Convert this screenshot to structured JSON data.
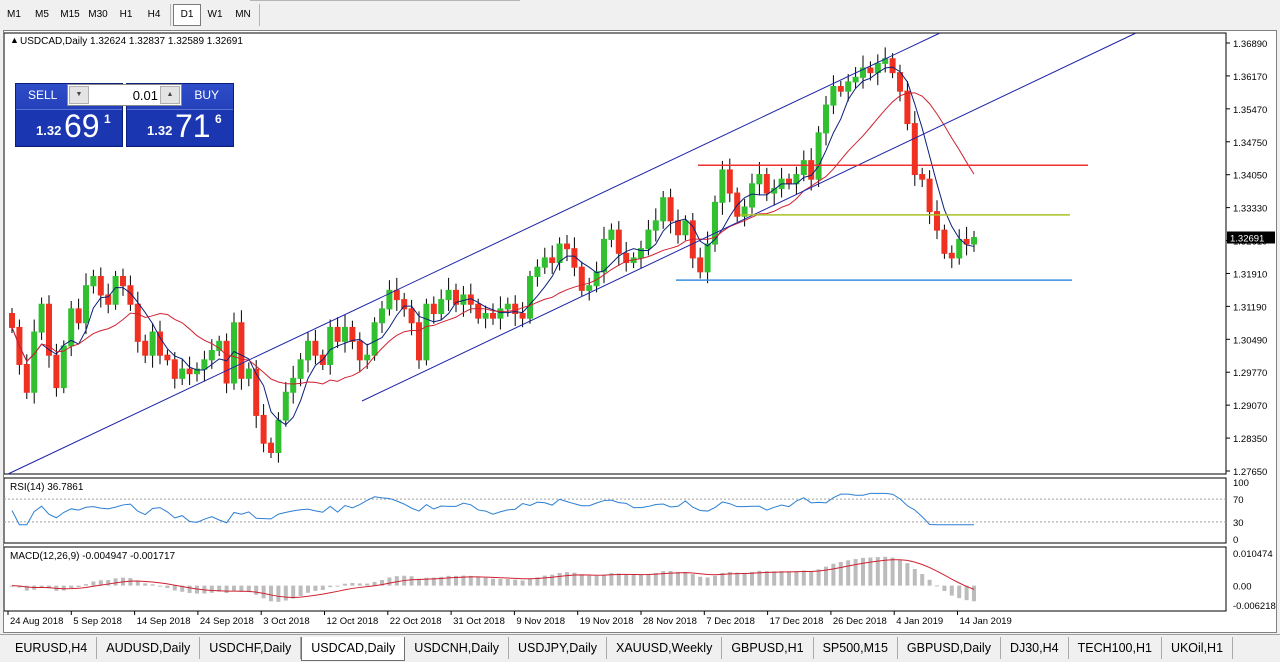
{
  "toolbar": {
    "timeframes": [
      {
        "label": "M1",
        "active": false
      },
      {
        "label": "M5",
        "active": false
      },
      {
        "label": "M15",
        "active": false
      },
      {
        "label": "M30",
        "active": false
      },
      {
        "label": "H1",
        "active": false
      },
      {
        "label": "H4",
        "active": false
      },
      {
        "label": "D1",
        "active": true
      },
      {
        "label": "W1",
        "active": false
      },
      {
        "label": "MN",
        "active": false
      }
    ]
  },
  "chart": {
    "header": "USDCAD,Daily   1.32624  1.32837  1.32589  1.32691",
    "current_price_label": "1.32691",
    "colors": {
      "bull": "#30c030",
      "bear": "#f03020",
      "ma_fast": "#0a1f7a",
      "ma_slow": "#d02030",
      "channel": "#1f24a8",
      "resistance": "#f03030",
      "mid_level": "#a8c020",
      "support": "#3a8ee0",
      "rsi": "#2a7fd4",
      "macd_hist": "#bcbcbc",
      "macd_signal": "#d02030"
    }
  },
  "trade_panel": {
    "sell_label": "SELL",
    "buy_label": "BUY",
    "lot": "0.01",
    "sell_price_small": "1.32",
    "sell_price_big": "69",
    "sell_price_sup": "1",
    "buy_price_small": "1.32",
    "buy_price_big": "71",
    "buy_price_sup": "6",
    "down_icon": "triangle-down-icon",
    "up_icon": "triangle-up-icon"
  },
  "chart_data": {
    "type": "candlestick",
    "symbol": "USDCAD",
    "timeframe": "Daily",
    "ohlc_header": {
      "open": 1.32624,
      "high": 1.32837,
      "low": 1.32589,
      "close": 1.32691
    },
    "y_ticks": [
      "1.36890",
      "1.36170",
      "1.35470",
      "1.34750",
      "1.34050",
      "1.33330",
      "1.32610",
      "1.31910",
      "1.31190",
      "1.30490",
      "1.29770",
      "1.29070",
      "1.28350",
      "1.27650"
    ],
    "y_range": [
      1.2765,
      1.3689
    ],
    "x_labels": [
      "24 Aug 2018",
      "5 Sep 2018",
      "14 Sep 2018",
      "24 Sep 2018",
      "3 Oct 2018",
      "12 Oct 2018",
      "22 Oct 2018",
      "31 Oct 2018",
      "9 Nov 2018",
      "19 Nov 2018",
      "28 Nov 2018",
      "7 Dec 2018",
      "17 Dec 2018",
      "26 Dec 2018",
      "4 Jan 2019",
      "14 Jan 2019"
    ],
    "closes": [
      1.3075,
      1.2995,
      1.2935,
      1.3065,
      1.3125,
      1.3015,
      1.2945,
      1.3035,
      1.3115,
      1.3085,
      1.3165,
      1.3185,
      1.3145,
      1.3125,
      1.3185,
      1.3165,
      1.3125,
      1.3045,
      1.3015,
      1.3065,
      1.3015,
      1.3005,
      1.2965,
      1.2985,
      1.2975,
      1.2985,
      1.3005,
      1.3025,
      1.3045,
      1.2955,
      1.3085,
      1.2965,
      1.2985,
      1.2885,
      1.2825,
      1.2805,
      1.2875,
      1.2935,
      1.2965,
      1.3005,
      1.3045,
      1.3015,
      1.2995,
      1.3075,
      1.3045,
      1.3075,
      1.3045,
      1.3005,
      1.3015,
      1.3085,
      1.3115,
      1.3155,
      1.3135,
      1.3115,
      1.3085,
      1.3005,
      1.3125,
      1.3105,
      1.3135,
      1.3155,
      1.3125,
      1.3145,
      1.3125,
      1.3095,
      1.3105,
      1.3095,
      1.3115,
      1.3125,
      1.3105,
      1.3095,
      1.3185,
      1.3205,
      1.3225,
      1.3215,
      1.3255,
      1.3245,
      1.3205,
      1.3155,
      1.3165,
      1.3195,
      1.3265,
      1.3285,
      1.3235,
      1.3215,
      1.3225,
      1.3245,
      1.3285,
      1.3305,
      1.3355,
      1.3305,
      1.3275,
      1.3305,
      1.3225,
      1.3195,
      1.3255,
      1.3345,
      1.3415,
      1.3365,
      1.3315,
      1.3335,
      1.3385,
      1.3405,
      1.3365,
      1.3375,
      1.3395,
      1.3385,
      1.3405,
      1.3435,
      1.3395,
      1.3495,
      1.3555,
      1.3595,
      1.3585,
      1.3605,
      1.3615,
      1.3635,
      1.3625,
      1.3645,
      1.3655,
      1.3625,
      1.3585,
      1.3515,
      1.3405,
      1.3395,
      1.3325,
      1.3285,
      1.3235,
      1.3225,
      1.3265,
      1.3255,
      1.3269
    ],
    "rsi": {
      "label": "RSI(14) 36.7861",
      "period": 14,
      "value": 36.7861,
      "levels": [
        70,
        30
      ],
      "axis_labels": [
        "100",
        "70",
        "30",
        "0"
      ]
    },
    "macd": {
      "label": "MACD(12,26,9) -0.004947 -0.001717",
      "params": [
        12,
        26,
        9
      ],
      "main": -0.004947,
      "signal": -0.001717,
      "axis_labels": [
        "0.010474",
        "0.00",
        "-0.006218"
      ]
    },
    "horizontal_levels": [
      1.3425,
      1.3318,
      1.3177
    ],
    "grid": false
  },
  "tabs": [
    {
      "label": "EURUSD,H4",
      "active": false
    },
    {
      "label": "AUDUSD,Daily",
      "active": false
    },
    {
      "label": "USDCHF,Daily",
      "active": false
    },
    {
      "label": "USDCAD,Daily",
      "active": true
    },
    {
      "label": "USDCNH,Daily",
      "active": false
    },
    {
      "label": "USDJPY,Daily",
      "active": false
    },
    {
      "label": "XAUUSD,Weekly",
      "active": false
    },
    {
      "label": "GBPUSD,H1",
      "active": false
    },
    {
      "label": "SP500,M15",
      "active": false
    },
    {
      "label": "GBPUSD,Daily",
      "active": false
    },
    {
      "label": "DJ30,H4",
      "active": false
    },
    {
      "label": "TECH100,H1",
      "active": false
    },
    {
      "label": "UKOil,H1",
      "active": false
    }
  ]
}
